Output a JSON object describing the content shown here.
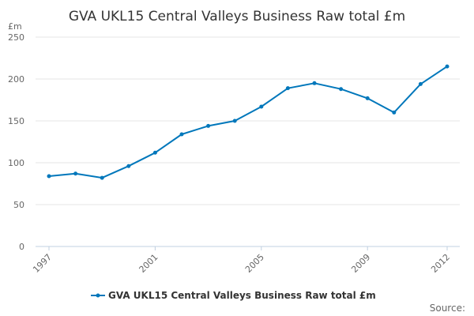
{
  "chart_data": {
    "type": "line",
    "title": "GVA UKL15 Central Valleys Business Raw total £m",
    "ylabel": "£m",
    "xlabel": "",
    "ylim": [
      0,
      250
    ],
    "yticks": [
      0,
      50,
      100,
      150,
      200,
      250
    ],
    "xticks": [
      "1997",
      "2001",
      "2005",
      "2009",
      "2012"
    ],
    "grid": true,
    "legend_position": "bottom",
    "source_label": "Source:",
    "series": [
      {
        "name": "GVA UKL15 Central Valleys Business Raw total £m",
        "color": "#0077bb",
        "x": [
          1997,
          1998,
          1999,
          2000,
          2001,
          2002,
          2003,
          2004,
          2005,
          2006,
          2007,
          2008,
          2009,
          2010,
          2011,
          2012
        ],
        "values": [
          84,
          87,
          82,
          96,
          112,
          134,
          144,
          150,
          167,
          189,
          195,
          188,
          177,
          160,
          194,
          215
        ]
      }
    ]
  }
}
